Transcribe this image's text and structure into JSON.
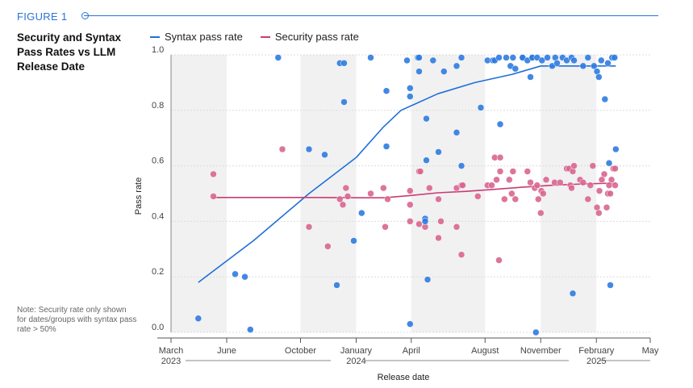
{
  "figure_label": "FIGURE 1",
  "title": "Security and Syntax Pass Rates vs LLM Release Date",
  "note": "Note: Security rate only shown for dates/groups with syntax pass rate > 50%",
  "colors": {
    "accent": "#2a72d6",
    "syntax": "#1f6fd8",
    "syntax_point": "#2e7be0",
    "security": "#c83c73",
    "security_point": "#d8668f",
    "band": "#f1f1f1"
  },
  "chart_data": {
    "type": "scatter",
    "title": "Security and Syntax Pass Rates vs LLM Release Date",
    "xlabel": "Release date",
    "ylabel": "Pass rate",
    "xlim": [
      "2023-03-01",
      "2025-05-01"
    ],
    "ylim": [
      0.0,
      1.0
    ],
    "yticks": [
      "0.0",
      "0.2",
      "0.4",
      "0.6",
      "0.8",
      "1.0"
    ],
    "xticks": [
      {
        "date": "2023-03-01",
        "label": "March",
        "year": "2023"
      },
      {
        "date": "2023-06-01",
        "label": "June",
        "year": ""
      },
      {
        "date": "2023-10-01",
        "label": "October",
        "year": ""
      },
      {
        "date": "2024-01-01",
        "label": "January",
        "year": "2024"
      },
      {
        "date": "2024-04-01",
        "label": "April",
        "year": ""
      },
      {
        "date": "2024-08-01",
        "label": "August",
        "year": ""
      },
      {
        "date": "2024-11-01",
        "label": "November",
        "year": ""
      },
      {
        "date": "2025-02-01",
        "label": "February",
        "year": "2025"
      },
      {
        "date": "2025-05-01",
        "label": "May",
        "year": ""
      }
    ],
    "shaded_periods": [
      [
        "2023-03-01",
        "2023-06-01"
      ],
      [
        "2023-10-01",
        "2024-01-01"
      ],
      [
        "2024-04-01",
        "2024-08-01"
      ],
      [
        "2024-11-01",
        "2025-02-01"
      ]
    ],
    "legend_position": "top",
    "grid": "horizontal",
    "series": [
      {
        "name": "Syntax pass rate",
        "kind": "points",
        "color": "#2e7be0",
        "points": [
          [
            "2023-04-15",
            0.05
          ],
          [
            "2023-06-15",
            0.21
          ],
          [
            "2023-07-01",
            0.2
          ],
          [
            "2023-07-10",
            0.01
          ],
          [
            "2023-08-25",
            0.99
          ],
          [
            "2023-10-15",
            0.66
          ],
          [
            "2023-11-10",
            0.64
          ],
          [
            "2023-11-30",
            0.17
          ],
          [
            "2023-12-05",
            0.97
          ],
          [
            "2023-12-12",
            0.97
          ],
          [
            "2023-12-12",
            0.83
          ],
          [
            "2023-12-28",
            0.33
          ],
          [
            "2024-01-10",
            0.43
          ],
          [
            "2024-01-25",
            0.99
          ],
          [
            "2024-02-20",
            0.87
          ],
          [
            "2024-02-20",
            0.67
          ],
          [
            "2024-03-25",
            0.98
          ],
          [
            "2024-03-30",
            0.03
          ],
          [
            "2024-03-30",
            0.85
          ],
          [
            "2024-03-30",
            0.88
          ],
          [
            "2024-04-12",
            0.99
          ],
          [
            "2024-04-14",
            0.99
          ],
          [
            "2024-04-14",
            0.94
          ],
          [
            "2024-04-24",
            0.41
          ],
          [
            "2024-04-24",
            0.4
          ],
          [
            "2024-04-26",
            0.62
          ],
          [
            "2024-04-26",
            0.77
          ],
          [
            "2024-04-28",
            0.19
          ],
          [
            "2024-05-07",
            0.98
          ],
          [
            "2024-05-16",
            0.65
          ],
          [
            "2024-05-25",
            0.94
          ],
          [
            "2024-06-15",
            0.96
          ],
          [
            "2024-06-15",
            0.72
          ],
          [
            "2024-06-23",
            0.99
          ],
          [
            "2024-06-23",
            0.6
          ],
          [
            "2024-07-25",
            0.81
          ],
          [
            "2024-08-05",
            0.98
          ],
          [
            "2024-08-14",
            0.98
          ],
          [
            "2024-08-17",
            0.98
          ],
          [
            "2024-08-24",
            0.99
          ],
          [
            "2024-08-26",
            0.75
          ],
          [
            "2024-09-05",
            0.99
          ],
          [
            "2024-09-12",
            0.96
          ],
          [
            "2024-09-16",
            0.99
          ],
          [
            "2024-09-20",
            0.95
          ],
          [
            "2024-10-02",
            0.99
          ],
          [
            "2024-10-02",
            0.99
          ],
          [
            "2024-10-10",
            0.98
          ],
          [
            "2024-10-15",
            0.92
          ],
          [
            "2024-10-18",
            0.99
          ],
          [
            "2024-10-18",
            0.99
          ],
          [
            "2024-10-24",
            0.0
          ],
          [
            "2024-10-26",
            0.99
          ],
          [
            "2024-11-03",
            0.98
          ],
          [
            "2024-11-12",
            0.99
          ],
          [
            "2024-11-20",
            0.96
          ],
          [
            "2024-11-25",
            0.99
          ],
          [
            "2024-11-28",
            0.97
          ],
          [
            "2024-12-07",
            0.99
          ],
          [
            "2024-12-14",
            0.98
          ],
          [
            "2024-12-22",
            0.99
          ],
          [
            "2024-12-24",
            0.14
          ],
          [
            "2024-12-26",
            0.98
          ],
          [
            "2025-01-10",
            0.96
          ],
          [
            "2025-01-18",
            0.99
          ],
          [
            "2025-01-28",
            0.96
          ],
          [
            "2025-02-02",
            0.94
          ],
          [
            "2025-02-05",
            0.92
          ],
          [
            "2025-02-09",
            0.98
          ],
          [
            "2025-02-15",
            0.84
          ],
          [
            "2025-02-20",
            0.97
          ],
          [
            "2025-02-22",
            0.61
          ],
          [
            "2025-02-24",
            0.17
          ],
          [
            "2025-02-27",
            0.99
          ],
          [
            "2025-03-03",
            0.99
          ],
          [
            "2025-03-05",
            0.66
          ]
        ]
      },
      {
        "name": "Syntax pass rate",
        "kind": "trend",
        "color": "#1f6fd8",
        "points": [
          [
            "2023-04-15",
            0.18
          ],
          [
            "2023-07-15",
            0.33
          ],
          [
            "2023-10-15",
            0.5
          ],
          [
            "2024-01-01",
            0.63
          ],
          [
            "2024-02-15",
            0.74
          ],
          [
            "2024-03-15",
            0.8
          ],
          [
            "2024-05-15",
            0.86
          ],
          [
            "2024-07-15",
            0.9
          ],
          [
            "2024-09-15",
            0.93
          ],
          [
            "2024-11-01",
            0.96
          ],
          [
            "2025-01-01",
            0.96
          ],
          [
            "2025-03-05",
            0.96
          ]
        ]
      },
      {
        "name": "Security pass rate",
        "kind": "points",
        "color": "#d8668f",
        "points": [
          [
            "2023-05-10",
            0.57
          ],
          [
            "2023-05-10",
            0.49
          ],
          [
            "2023-09-01",
            0.66
          ],
          [
            "2023-10-15",
            0.38
          ],
          [
            "2023-11-15",
            0.31
          ],
          [
            "2023-12-05",
            0.48
          ],
          [
            "2023-12-10",
            0.46
          ],
          [
            "2023-12-15",
            0.52
          ],
          [
            "2023-12-18",
            0.49
          ],
          [
            "2024-01-25",
            0.5
          ],
          [
            "2024-02-15",
            0.52
          ],
          [
            "2024-02-18",
            0.38
          ],
          [
            "2024-02-22",
            0.48
          ],
          [
            "2024-03-30",
            0.51
          ],
          [
            "2024-03-30",
            0.46
          ],
          [
            "2024-03-30",
            0.4
          ],
          [
            "2024-04-14",
            0.39
          ],
          [
            "2024-04-14",
            0.58
          ],
          [
            "2024-04-16",
            0.58
          ],
          [
            "2024-04-24",
            0.38
          ],
          [
            "2024-05-01",
            0.52
          ],
          [
            "2024-05-16",
            0.34
          ],
          [
            "2024-05-16",
            0.48
          ],
          [
            "2024-05-20",
            0.4
          ],
          [
            "2024-06-15",
            0.52
          ],
          [
            "2024-06-15",
            0.38
          ],
          [
            "2024-06-23",
            0.28
          ],
          [
            "2024-06-23",
            0.53
          ],
          [
            "2024-06-25",
            0.53
          ],
          [
            "2024-07-20",
            0.49
          ],
          [
            "2024-08-05",
            0.53
          ],
          [
            "2024-08-12",
            0.53
          ],
          [
            "2024-08-17",
            0.63
          ],
          [
            "2024-08-20",
            0.55
          ],
          [
            "2024-08-24",
            0.26
          ],
          [
            "2024-08-26",
            0.63
          ],
          [
            "2024-08-26",
            0.58
          ],
          [
            "2024-09-02",
            0.48
          ],
          [
            "2024-09-10",
            0.55
          ],
          [
            "2024-09-14",
            0.5
          ],
          [
            "2024-09-16",
            0.58
          ],
          [
            "2024-09-20",
            0.48
          ],
          [
            "2024-10-10",
            0.58
          ],
          [
            "2024-10-15",
            0.54
          ],
          [
            "2024-10-22",
            0.52
          ],
          [
            "2024-10-26",
            0.53
          ],
          [
            "2024-10-28",
            0.48
          ],
          [
            "2024-11-01",
            0.43
          ],
          [
            "2024-11-02",
            0.51
          ],
          [
            "2024-11-05",
            0.5
          ],
          [
            "2024-11-10",
            0.55
          ],
          [
            "2024-11-24",
            0.54
          ],
          [
            "2024-12-03",
            0.54
          ],
          [
            "2024-12-14",
            0.59
          ],
          [
            "2024-12-18",
            0.59
          ],
          [
            "2024-12-20",
            0.53
          ],
          [
            "2024-12-22",
            0.52
          ],
          [
            "2024-12-24",
            0.58
          ],
          [
            "2024-12-26",
            0.6
          ],
          [
            "2025-01-05",
            0.55
          ],
          [
            "2025-01-10",
            0.54
          ],
          [
            "2025-01-18",
            0.48
          ],
          [
            "2025-01-22",
            0.53
          ],
          [
            "2025-01-26",
            0.6
          ],
          [
            "2025-02-02",
            0.45
          ],
          [
            "2025-02-05",
            0.43
          ],
          [
            "2025-02-06",
            0.51
          ],
          [
            "2025-02-10",
            0.55
          ],
          [
            "2025-02-14",
            0.57
          ],
          [
            "2025-02-18",
            0.45
          ],
          [
            "2025-02-20",
            0.5
          ],
          [
            "2025-02-22",
            0.53
          ],
          [
            "2025-02-24",
            0.5
          ],
          [
            "2025-02-26",
            0.55
          ],
          [
            "2025-03-01",
            0.59
          ],
          [
            "2025-03-04",
            0.59
          ],
          [
            "2025-03-04",
            0.53
          ]
        ]
      },
      {
        "name": "Security pass rate",
        "kind": "trend",
        "color": "#c83c73",
        "points": [
          [
            "2023-05-10",
            0.486
          ],
          [
            "2023-11-01",
            0.486
          ],
          [
            "2024-01-15",
            0.485
          ],
          [
            "2024-02-15",
            0.485
          ],
          [
            "2024-03-30",
            0.493
          ],
          [
            "2024-05-15",
            0.503
          ],
          [
            "2024-07-01",
            0.508
          ],
          [
            "2024-08-15",
            0.515
          ],
          [
            "2024-10-01",
            0.523
          ],
          [
            "2024-11-20",
            0.53
          ],
          [
            "2025-01-10",
            0.535
          ],
          [
            "2025-03-05",
            0.538
          ]
        ]
      }
    ]
  }
}
